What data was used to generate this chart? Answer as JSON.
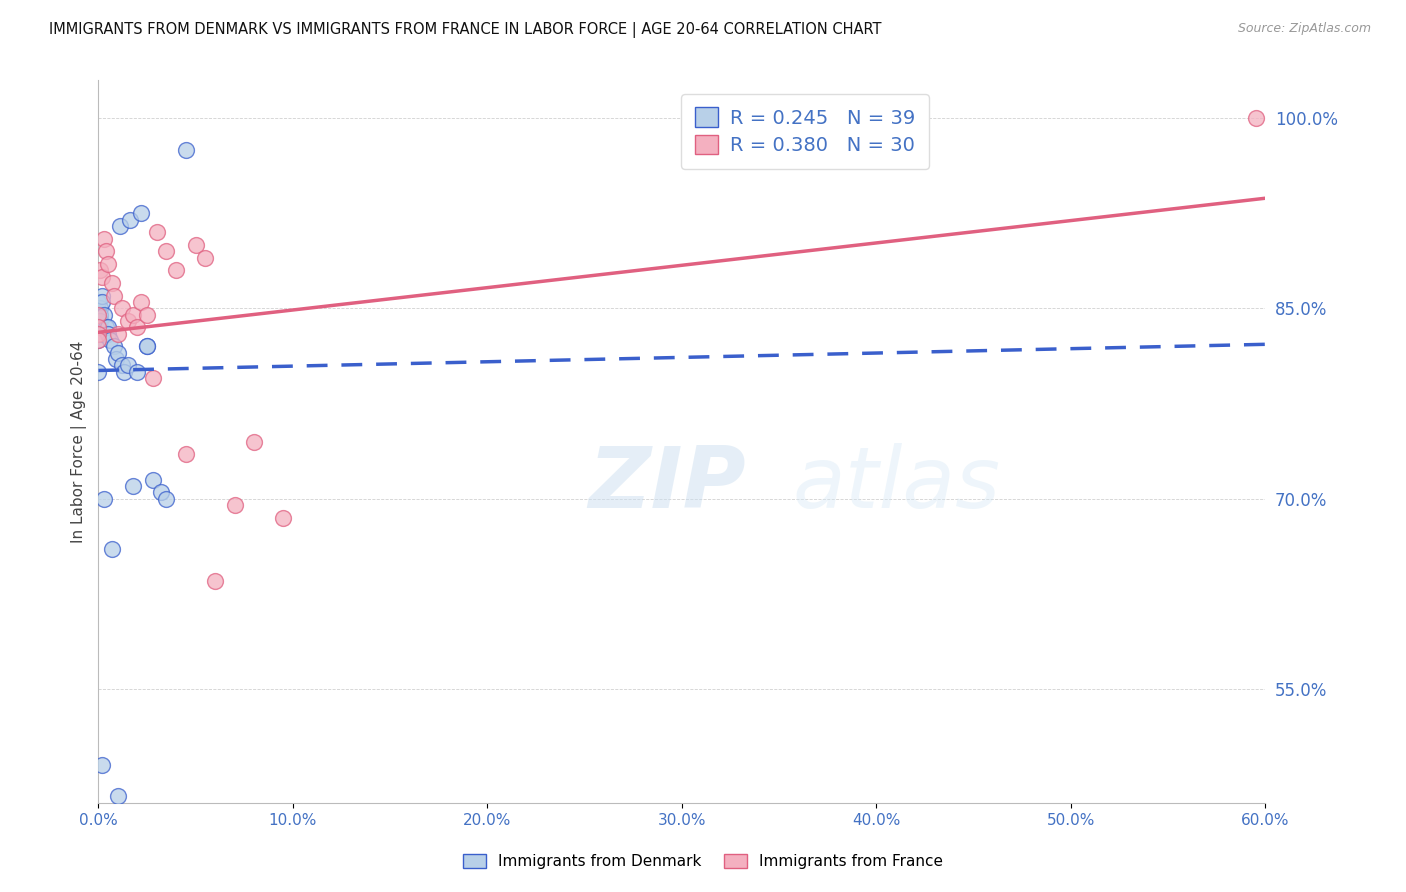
{
  "title": "IMMIGRANTS FROM DENMARK VS IMMIGRANTS FROM FRANCE IN LABOR FORCE | AGE 20-64 CORRELATION CHART",
  "source": "Source: ZipAtlas.com",
  "ylabel": "In Labor Force | Age 20-64",
  "legend1_label": "Immigrants from Denmark",
  "legend2_label": "Immigrants from France",
  "R1": 0.245,
  "N1": 39,
  "R2": 0.38,
  "N2": 30,
  "color1": "#b8d0e8",
  "color2": "#f4b0c0",
  "trendline1_color": "#3a5fcc",
  "trendline2_color": "#e06080",
  "tick_color": "#4472c4",
  "right_yticks": [
    55.0,
    70.0,
    85.0,
    100.0
  ],
  "xlim": [
    0.0,
    60.0
  ],
  "ylim": [
    46.0,
    103.0
  ],
  "denmark_x": [
    0.0,
    0.0,
    0.0,
    0.0,
    0.0,
    0.0,
    0.0,
    0.1,
    0.1,
    0.1,
    0.2,
    0.2,
    0.2,
    0.3,
    0.3,
    0.4,
    0.5,
    0.5,
    0.6,
    0.7,
    0.8,
    0.9,
    1.0,
    1.1,
    1.2,
    1.3,
    1.5,
    1.6,
    1.8,
    2.0,
    2.2,
    2.5,
    2.5,
    2.8,
    3.2,
    3.5,
    4.5,
    0.2,
    1.0
  ],
  "denmark_y": [
    85.5,
    84.5,
    84.0,
    83.5,
    83.0,
    82.5,
    80.0,
    85.0,
    84.5,
    84.0,
    86.0,
    85.5,
    83.0,
    84.5,
    70.0,
    83.5,
    83.5,
    83.0,
    82.5,
    66.0,
    82.0,
    81.0,
    81.5,
    91.5,
    80.5,
    80.0,
    80.5,
    92.0,
    71.0,
    80.0,
    92.5,
    82.0,
    82.0,
    71.5,
    70.5,
    70.0,
    97.5,
    49.0,
    46.5
  ],
  "france_x": [
    0.0,
    0.0,
    0.0,
    0.0,
    0.1,
    0.2,
    0.3,
    0.4,
    0.5,
    0.7,
    0.8,
    1.0,
    1.2,
    1.5,
    1.8,
    2.0,
    2.2,
    2.5,
    2.8,
    3.0,
    3.5,
    4.0,
    4.5,
    5.0,
    5.5,
    6.0,
    7.0,
    8.0,
    9.5,
    59.5
  ],
  "france_y": [
    84.5,
    83.5,
    83.0,
    82.5,
    88.0,
    87.5,
    90.5,
    89.5,
    88.5,
    87.0,
    86.0,
    83.0,
    85.0,
    84.0,
    84.5,
    83.5,
    85.5,
    84.5,
    79.5,
    91.0,
    89.5,
    88.0,
    73.5,
    90.0,
    89.0,
    63.5,
    69.5,
    74.5,
    68.5,
    100.0
  ]
}
